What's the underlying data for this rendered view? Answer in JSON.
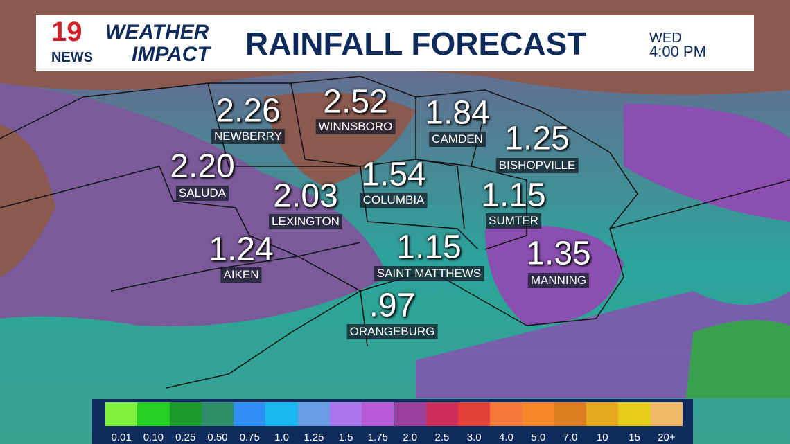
{
  "header": {
    "logo_number": "19",
    "logo_news": "NEWS",
    "brand_top": "WEATHER",
    "brand_bottom": "IMPACT",
    "title": "RAINFALL FORECAST",
    "day": "WED",
    "time": "4:00 PM"
  },
  "cities": [
    {
      "value": "2.26",
      "name": "NEWBERRY"
    },
    {
      "value": "2.52",
      "name": "WINNSBORO"
    },
    {
      "value": "1.84",
      "name": "CAMDEN"
    },
    {
      "value": "1.25",
      "name": "BISHOPVILLE"
    },
    {
      "value": "2.20",
      "name": "SALUDA"
    },
    {
      "value": "1.54",
      "name": "COLUMBIA"
    },
    {
      "value": "2.03",
      "name": "LEXINGTON"
    },
    {
      "value": "1.15",
      "name": "SUMTER"
    },
    {
      "value": "1.24",
      "name": "AIKEN"
    },
    {
      "value": "1.15",
      "name": "SAINT MATTHEWS"
    },
    {
      "value": "1.35",
      "name": "MANNING"
    },
    {
      "value": ".97",
      "name": "ORANGEBURG"
    }
  ],
  "legend": [
    {
      "label": "0.01",
      "color": "#7cf03c"
    },
    {
      "label": "0.10",
      "color": "#24d024"
    },
    {
      "label": "0.25",
      "color": "#1a9a2c"
    },
    {
      "label": "0.50",
      "color": "#2e8e6a"
    },
    {
      "label": "0.75",
      "color": "#2f8ff5"
    },
    {
      "label": "1.0",
      "color": "#19b7f0"
    },
    {
      "label": "1.25",
      "color": "#6a9de6"
    },
    {
      "label": "1.5",
      "color": "#a877ea"
    },
    {
      "label": "1.75",
      "color": "#b65ad6"
    },
    {
      "label": "2.0",
      "color": "#9a3f9c"
    },
    {
      "label": "2.5",
      "color": "#cc2e5e"
    },
    {
      "label": "3.0",
      "color": "#e3403a"
    },
    {
      "label": "4.0",
      "color": "#f57a3a"
    },
    {
      "label": "5.0",
      "color": "#f5862a"
    },
    {
      "label": "7.0",
      "color": "#dd7d22"
    },
    {
      "label": "10",
      "color": "#e8a81e"
    },
    {
      "label": "15",
      "color": "#e8cc1a"
    },
    {
      "label": "20+",
      "color": "#f0b868"
    }
  ]
}
